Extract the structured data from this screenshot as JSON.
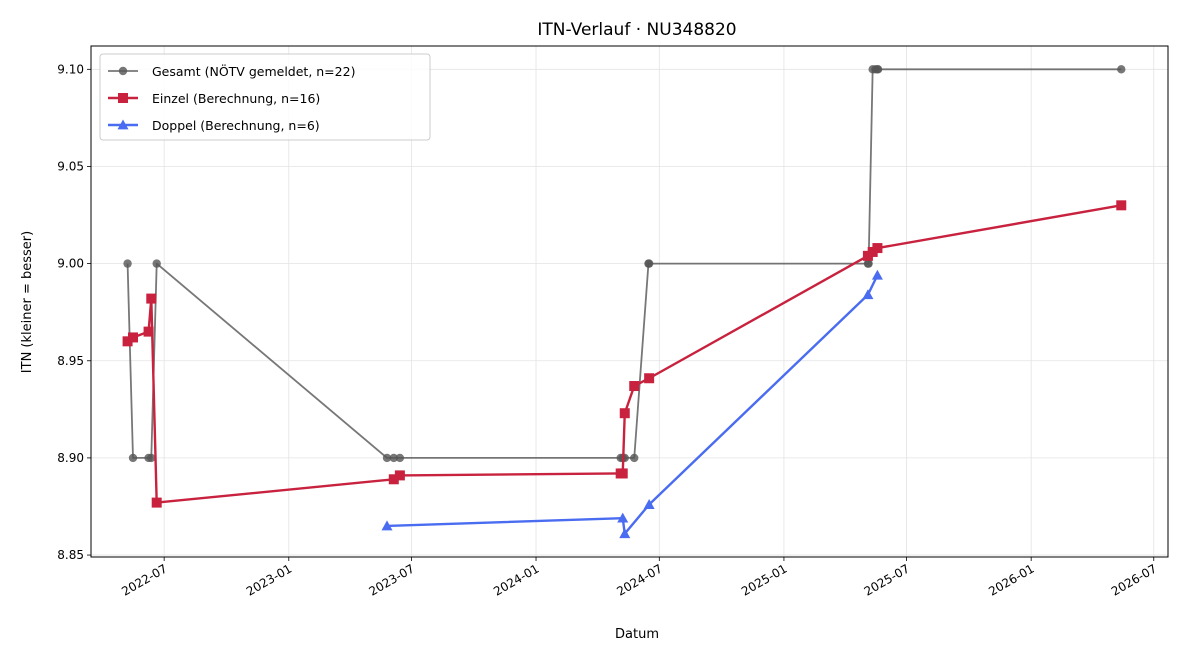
{
  "chart_data": {
    "type": "line",
    "title": "ITN-Verlauf · NU348820",
    "xlabel": "Datum",
    "ylabel": "ITN  (kleiner = besser)",
    "xlim": [
      "2022-03-15",
      "2026-07-22"
    ],
    "ylim": [
      8.849,
      9.112
    ],
    "x_ticks": [
      "2022-07",
      "2023-01",
      "2023-07",
      "2024-01",
      "2024-07",
      "2025-01",
      "2025-07",
      "2026-01",
      "2026-07"
    ],
    "y_ticks": [
      "8.85",
      "8.90",
      "8.95",
      "9.00",
      "9.05",
      "9.10"
    ],
    "grid": true,
    "legend_position": "top-left",
    "series": [
      {
        "name": "Gesamt (NÖTV gemeldet, n=22)",
        "color": "#555555",
        "marker": "circle",
        "points": [
          {
            "x": "2022-05-08",
            "y": 9.0
          },
          {
            "x": "2022-05-16",
            "y": 8.9
          },
          {
            "x": "2022-06-08",
            "y": 8.9
          },
          {
            "x": "2022-06-12",
            "y": 8.9
          },
          {
            "x": "2022-06-20",
            "y": 9.0
          },
          {
            "x": "2023-05-26",
            "y": 8.9
          },
          {
            "x": "2023-06-05",
            "y": 8.9
          },
          {
            "x": "2023-06-14",
            "y": 8.9
          },
          {
            "x": "2024-05-05",
            "y": 8.9
          },
          {
            "x": "2024-05-08",
            "y": 8.9
          },
          {
            "x": "2024-05-11",
            "y": 8.9
          },
          {
            "x": "2024-05-25",
            "y": 8.9
          },
          {
            "x": "2024-06-15",
            "y": 9.0
          },
          {
            "x": "2024-06-16",
            "y": 9.0
          },
          {
            "x": "2025-05-05",
            "y": 9.0
          },
          {
            "x": "2025-05-06",
            "y": 9.0
          },
          {
            "x": "2025-05-12",
            "y": 9.1
          },
          {
            "x": "2025-05-16",
            "y": 9.1
          },
          {
            "x": "2025-05-19",
            "y": 9.1
          },
          {
            "x": "2025-05-20",
            "y": 9.1
          },
          {
            "x": "2026-05-14",
            "y": 9.1
          }
        ]
      },
      {
        "name": "Einzel (Berechnung, n=16)",
        "color": "#c8223f",
        "marker": "square",
        "points": [
          {
            "x": "2022-05-08",
            "y": 8.96
          },
          {
            "x": "2022-05-16",
            "y": 8.962
          },
          {
            "x": "2022-06-08",
            "y": 8.965
          },
          {
            "x": "2022-06-12",
            "y": 8.982
          },
          {
            "x": "2022-06-20",
            "y": 8.877
          },
          {
            "x": "2023-06-05",
            "y": 8.889
          },
          {
            "x": "2023-06-14",
            "y": 8.891
          },
          {
            "x": "2024-05-05",
            "y": 8.892
          },
          {
            "x": "2024-05-08",
            "y": 8.892
          },
          {
            "x": "2024-05-11",
            "y": 8.923
          },
          {
            "x": "2024-05-25",
            "y": 8.937
          },
          {
            "x": "2024-06-16",
            "y": 8.941
          },
          {
            "x": "2025-05-05",
            "y": 9.004
          },
          {
            "x": "2025-05-12",
            "y": 9.006
          },
          {
            "x": "2025-05-19",
            "y": 9.008
          },
          {
            "x": "2026-05-14",
            "y": 9.03
          }
        ]
      },
      {
        "name": "Doppel (Berechnung, n=6)",
        "color": "#4a6cf0",
        "marker": "triangle",
        "points": [
          {
            "x": "2023-05-26",
            "y": 8.865
          },
          {
            "x": "2024-05-08",
            "y": 8.869
          },
          {
            "x": "2024-05-11",
            "y": 8.861
          },
          {
            "x": "2024-06-16",
            "y": 8.876
          },
          {
            "x": "2025-05-05",
            "y": 8.984
          },
          {
            "x": "2025-05-19",
            "y": 8.994
          }
        ]
      }
    ]
  }
}
